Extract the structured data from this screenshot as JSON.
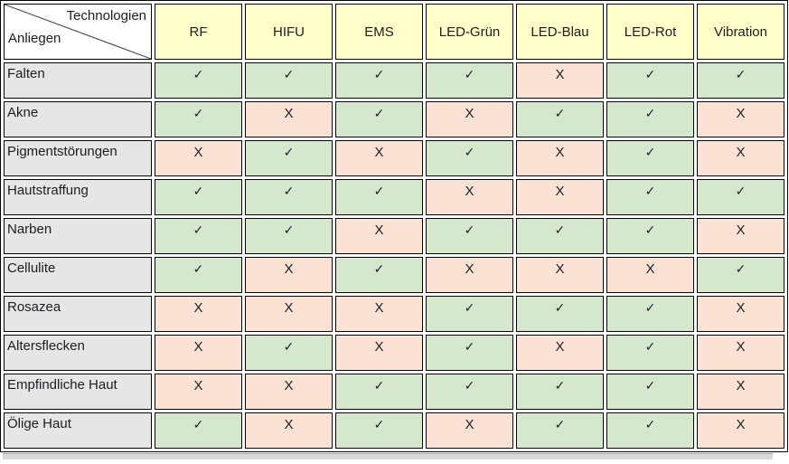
{
  "colors": {
    "header_bg": "#ffffcc",
    "label_bg": "#e7e6e6",
    "yes_bg": "#d5e8ce",
    "no_bg": "#fbe2d5",
    "border": "#000000",
    "text": "#1d1d1f",
    "strip_bg": "#d9d9d9",
    "strip_edge": "#a8a8a8"
  },
  "chart_data": {
    "type": "table",
    "corner": {
      "top_right": "Technologien",
      "bottom_left": "Anliegen"
    },
    "columns": [
      "RF",
      "HIFU",
      "EMS",
      "LED-Grün",
      "LED-Blau",
      "LED-Rot",
      "Vibration"
    ],
    "symbols": {
      "supported": "✓",
      "not_supported": "X"
    },
    "rows": [
      {
        "label": "Falten",
        "values": [
          "✓",
          "✓",
          "✓",
          "✓",
          "X",
          "✓",
          "✓"
        ]
      },
      {
        "label": "Akne",
        "values": [
          "✓",
          "X",
          "✓",
          "X",
          "✓",
          "✓",
          "X"
        ]
      },
      {
        "label": "Pigmentstörungen",
        "values": [
          "X",
          "✓",
          "X",
          "✓",
          "X",
          "✓",
          "X"
        ]
      },
      {
        "label": "Hautstraffung",
        "values": [
          "✓",
          "✓",
          "✓",
          "X",
          "X",
          "✓",
          "✓"
        ]
      },
      {
        "label": "Narben",
        "values": [
          "✓",
          "✓",
          "X",
          "✓",
          "✓",
          "✓",
          "X"
        ]
      },
      {
        "label": "Cellulite",
        "values": [
          "✓",
          "X",
          "✓",
          "X",
          "X",
          "X",
          "✓"
        ]
      },
      {
        "label": "Rosazea",
        "values": [
          "X",
          "X",
          "X",
          "✓",
          "✓",
          "✓",
          "X"
        ]
      },
      {
        "label": "Altersflecken",
        "values": [
          "X",
          "✓",
          "X",
          "✓",
          "X",
          "✓",
          "X"
        ]
      },
      {
        "label": "Empfindliche Haut",
        "values": [
          "X",
          "X",
          "✓",
          "✓",
          "✓",
          "✓",
          "X"
        ]
      },
      {
        "label": "Ölige Haut",
        "values": [
          "✓",
          "X",
          "✓",
          "X",
          "✓",
          "✓",
          "X"
        ]
      }
    ]
  }
}
